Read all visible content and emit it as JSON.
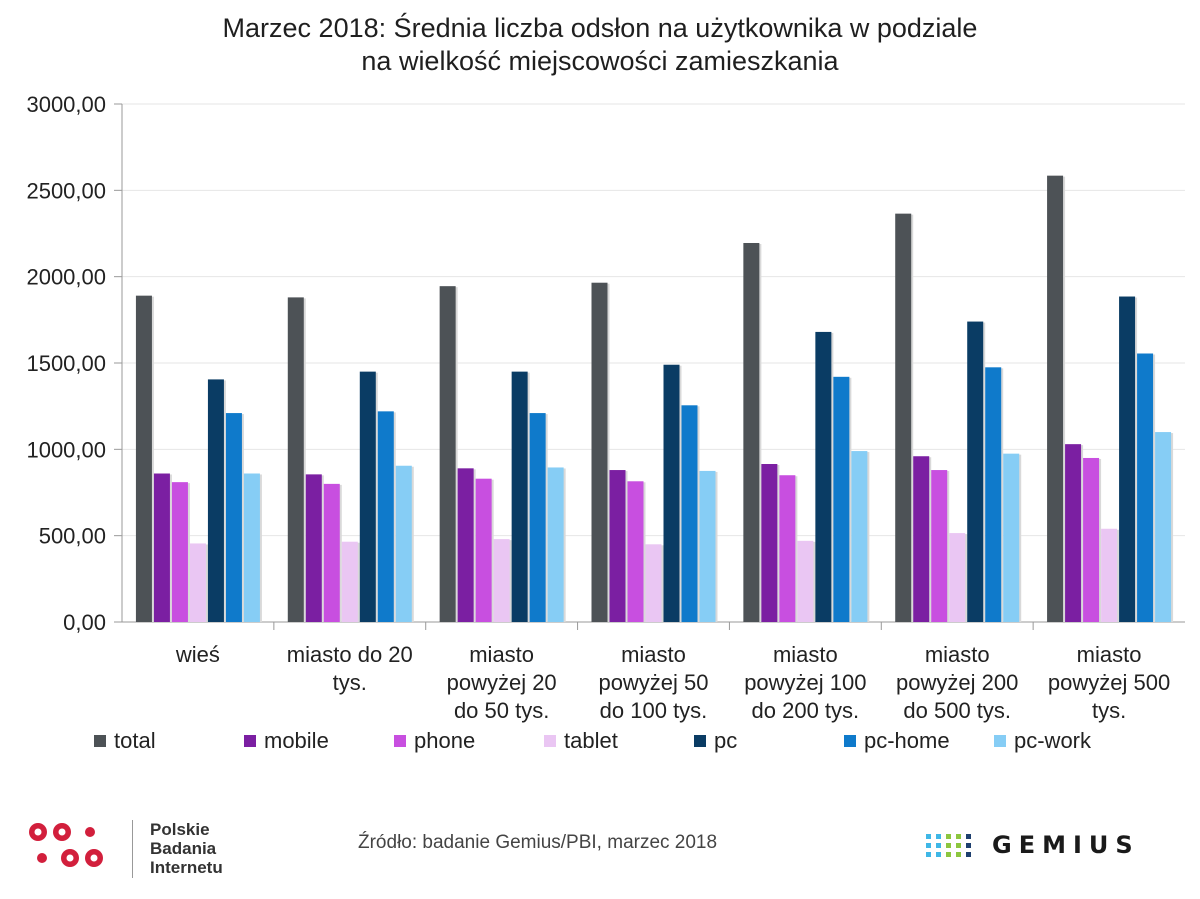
{
  "chart_data": {
    "type": "bar",
    "title_lines": [
      "Marzec 2018: Średnia liczba odsłon na użytkownika w podziale",
      "na wielkość miejscowości zamieszkania"
    ],
    "categories": [
      [
        "wieś"
      ],
      [
        "miasto do 20",
        "tys."
      ],
      [
        "miasto",
        "powyżej 20",
        "do 50 tys."
      ],
      [
        "miasto",
        "powyżej 50",
        "do 100 tys."
      ],
      [
        "miasto",
        "powyżej 100",
        "do 200 tys."
      ],
      [
        "miasto",
        "powyżej 200",
        "do 500 tys."
      ],
      [
        "miasto",
        "powyżej 500",
        "tys."
      ]
    ],
    "series": [
      {
        "name": "total",
        "color": "#4d5256",
        "values": [
          1890,
          1880,
          1945,
          1965,
          2195,
          2365,
          2585
        ]
      },
      {
        "name": "mobile",
        "color": "#7b1fa2",
        "values": [
          860,
          855,
          890,
          880,
          915,
          960,
          1030
        ]
      },
      {
        "name": "phone",
        "color": "#c84fe0",
        "values": [
          810,
          800,
          830,
          815,
          850,
          880,
          950
        ]
      },
      {
        "name": "tablet",
        "color": "#eac6f3",
        "values": [
          455,
          465,
          480,
          450,
          470,
          515,
          540
        ]
      },
      {
        "name": "pc",
        "color": "#0a3c64",
        "values": [
          1405,
          1450,
          1450,
          1490,
          1680,
          1740,
          1885
        ]
      },
      {
        "name": "pc-home",
        "color": "#0f7acb",
        "values": [
          1210,
          1220,
          1210,
          1255,
          1420,
          1475,
          1555
        ]
      },
      {
        "name": "pc-work",
        "color": "#86cdf5",
        "values": [
          860,
          905,
          895,
          875,
          990,
          975,
          1100
        ]
      }
    ],
    "ylim": [
      0,
      3000
    ],
    "yticks": [
      "0,00",
      "500,00",
      "1000,00",
      "1500,00",
      "2000,00",
      "2500,00",
      "3000,00"
    ],
    "ytick_values": [
      0,
      500,
      1000,
      1500,
      2000,
      2500,
      3000
    ],
    "grid": true,
    "legend_position": "bottom"
  },
  "footer": {
    "pbi_lines": [
      "Polskie",
      "Badania",
      "Internetu"
    ],
    "pbi_logo_color": "#d21f3c",
    "source": "Źródło: badanie Gemius/PBI, marzec 2018",
    "gemius_word": "GEMIUS",
    "gemius_dot_colors": [
      "#3fb7e6",
      "#8cc63f",
      "#1d3f6e"
    ]
  }
}
